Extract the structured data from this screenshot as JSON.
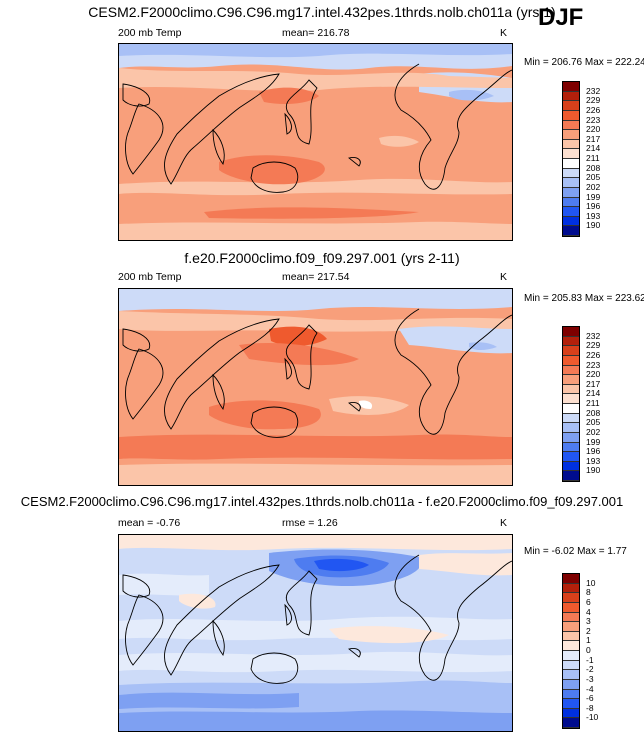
{
  "season": "DJF",
  "palette_main": [
    "#000c8e",
    "#0030e0",
    "#2156f2",
    "#4e7cf0",
    "#7ea0f2",
    "#a8c0f6",
    "#cddbf8",
    "#ffffff",
    "#fde0d0",
    "#fbc5a9",
    "#f89f7b",
    "#f47a55",
    "#ef5a2e",
    "#d8401b",
    "#b3200b",
    "#7e0000"
  ],
  "palette_diff": [
    "#000c8e",
    "#0030e0",
    "#2156f2",
    "#4e7cf0",
    "#7ea0f2",
    "#a8c0f6",
    "#cddbf8",
    "#e4ecfb",
    "#fde8dc",
    "#fbc5a9",
    "#f89f7b",
    "#f47a55",
    "#ef5a2e",
    "#d8401b",
    "#b3200b",
    "#7e0000"
  ],
  "panels": [
    {
      "title": "CESM2.F2000climo.C96.C96.mg17.intel.432pes.1thrds.nolb.ch011a (yrs 1)",
      "variable": "200 mb Temp",
      "stat": "mean= 216.78",
      "stat2": "",
      "units": "K",
      "minmax": "Min = 206.76 Max = 222.24",
      "colorbar_labels": [
        "232",
        "229",
        "226",
        "223",
        "220",
        "217",
        "214",
        "211",
        "208",
        "205",
        "202",
        "199",
        "196",
        "193",
        "190"
      ]
    },
    {
      "title": "f.e20.F2000climo.f09_f09.297.001 (yrs 2-11)",
      "variable": "200 mb Temp",
      "stat": "mean= 217.54",
      "stat2": "",
      "units": "K",
      "minmax": "Min = 205.83 Max = 223.62",
      "colorbar_labels": [
        "232",
        "229",
        "226",
        "223",
        "220",
        "217",
        "214",
        "211",
        "208",
        "205",
        "202",
        "199",
        "196",
        "193",
        "190"
      ]
    },
    {
      "title": "CESM2.F2000climo.C96.C96.mg17.intel.432pes.1thrds.nolb.ch011a - f.e20.F2000climo.f09_f09.297.001",
      "variable": "",
      "stat": "mean =  -0.76",
      "stat2": "rmse =  1.26",
      "units": "K",
      "minmax": "Min =  -6.02 Max =   1.77",
      "colorbar_labels": [
        "10",
        "8",
        "6",
        "4",
        "3",
        "2",
        "1",
        "0",
        "-1",
        "-2",
        "-3",
        "-4",
        "-6",
        "-8",
        "-10"
      ]
    }
  ]
}
